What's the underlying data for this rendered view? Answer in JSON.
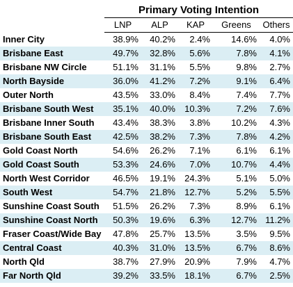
{
  "title": "Primary Voting Intention",
  "columns": [
    "LNP",
    "ALP",
    "KAP",
    "Greens",
    "Others"
  ],
  "rows": [
    {
      "region": "Inner City",
      "values": [
        "38.9%",
        "40.2%",
        "2.4%",
        "14.6%",
        "4.0%"
      ]
    },
    {
      "region": "Brisbane East",
      "values": [
        "49.7%",
        "32.8%",
        "5.6%",
        "7.8%",
        "4.1%"
      ]
    },
    {
      "region": "Brisbane NW Circle",
      "values": [
        "51.1%",
        "31.1%",
        "5.5%",
        "9.8%",
        "2.7%"
      ]
    },
    {
      "region": "North Bayside",
      "values": [
        "36.0%",
        "41.2%",
        "7.2%",
        "9.1%",
        "6.4%"
      ]
    },
    {
      "region": "Outer North",
      "values": [
        "43.5%",
        "33.0%",
        "8.4%",
        "7.4%",
        "7.7%"
      ]
    },
    {
      "region": "Brisbane South West",
      "values": [
        "35.1%",
        "40.0%",
        "10.3%",
        "7.2%",
        "7.6%"
      ]
    },
    {
      "region": "Brisbane Inner South",
      "values": [
        "43.4%",
        "38.3%",
        "3.8%",
        "10.2%",
        "4.3%"
      ]
    },
    {
      "region": "Brisbane South East",
      "values": [
        "42.5%",
        "38.2%",
        "7.3%",
        "7.8%",
        "4.2%"
      ]
    },
    {
      "region": "Gold Coast North",
      "values": [
        "54.6%",
        "26.2%",
        "7.1%",
        "6.1%",
        "6.1%"
      ]
    },
    {
      "region": "Gold Coast South",
      "values": [
        "53.3%",
        "24.6%",
        "7.0%",
        "10.7%",
        "4.4%"
      ]
    },
    {
      "region": "North West Corridor",
      "values": [
        "46.5%",
        "19.1%",
        "24.3%",
        "5.1%",
        "5.0%"
      ]
    },
    {
      "region": "South West",
      "values": [
        "54.7%",
        "21.8%",
        "12.7%",
        "5.2%",
        "5.5%"
      ]
    },
    {
      "region": "Sunshine Coast South",
      "values": [
        "51.5%",
        "26.2%",
        "7.3%",
        "8.9%",
        "6.1%"
      ]
    },
    {
      "region": "Sunshine Coast North",
      "values": [
        "50.3%",
        "19.6%",
        "6.3%",
        "12.7%",
        "11.2%"
      ]
    },
    {
      "region": "Fraser Coast/Wide Bay",
      "values": [
        "47.8%",
        "25.7%",
        "13.5%",
        "3.5%",
        "9.5%"
      ]
    },
    {
      "region": "Central Coast",
      "values": [
        "40.3%",
        "31.0%",
        "13.5%",
        "6.7%",
        "8.6%"
      ]
    },
    {
      "region": "North Qld",
      "values": [
        "38.7%",
        "27.9%",
        "20.9%",
        "7.9%",
        "4.7%"
      ]
    },
    {
      "region": "Far North Qld",
      "values": [
        "39.2%",
        "33.5%",
        "18.1%",
        "6.7%",
        "2.5%"
      ]
    }
  ],
  "colors": {
    "shade": "#dbeef4",
    "background": "#ffffff"
  }
}
